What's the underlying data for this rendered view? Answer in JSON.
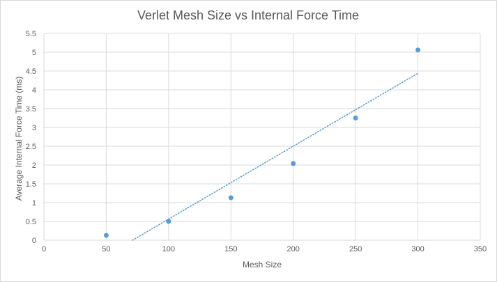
{
  "chart_data": {
    "type": "scatter",
    "title": "Verlet Mesh Size vs Internal Force Time",
    "xlabel": "Mesh Size",
    "ylabel": "Average Internal Force Time (ms)",
    "xlim": [
      0,
      350
    ],
    "ylim": [
      0,
      5.5
    ],
    "x_ticks": [
      "0",
      "50",
      "100",
      "150",
      "200",
      "250",
      "300",
      "350"
    ],
    "y_ticks": [
      "0",
      "0.5",
      "1",
      "1.5",
      "2",
      "2.5",
      "3",
      "3.5",
      "4",
      "4.5",
      "5",
      "5.5"
    ],
    "grid": true,
    "series": [
      {
        "x": [
          50,
          100,
          150,
          200,
          250,
          300
        ],
        "y": [
          0.13,
          0.5,
          1.13,
          2.04,
          3.25,
          5.06
        ],
        "color": "#5B9BD5"
      }
    ],
    "trendline": {
      "type": "linear",
      "style": "dotted",
      "color": "#5B9BD5",
      "x_range": [
        71,
        300
      ],
      "slope": 0.01939,
      "intercept": -1.377
    }
  }
}
